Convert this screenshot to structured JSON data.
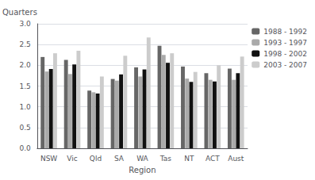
{
  "chart_data": {
    "type": "bar",
    "xlabel": "Region",
    "ylabel": "Quarters",
    "categories": [
      "NSW",
      "Vic",
      "Qld",
      "SA",
      "WA",
      "Tas",
      "NT",
      "ACT",
      "Aust"
    ],
    "series": [
      {
        "name": "1988 - 1992",
        "color": "#666666",
        "values": [
          2.2,
          2.13,
          1.39,
          1.67,
          1.95,
          2.47,
          1.97,
          1.81,
          1.92
        ]
      },
      {
        "name": "1993 - 1997",
        "color": "#aaaaaa",
        "values": [
          1.85,
          1.79,
          1.35,
          1.63,
          1.73,
          2.25,
          1.68,
          1.65,
          1.65
        ]
      },
      {
        "name": "1998 - 2002",
        "color": "#111111",
        "values": [
          1.91,
          2.02,
          1.32,
          1.78,
          1.9,
          2.06,
          1.6,
          1.61,
          1.81
        ]
      },
      {
        "name": "2003 - 2007",
        "color": "#cccccc",
        "values": [
          2.29,
          2.35,
          1.73,
          2.23,
          2.67,
          2.29,
          1.84,
          2.0,
          2.21
        ]
      }
    ],
    "ylim": [
      0,
      3.0
    ],
    "yticks": [
      {
        "value": 0,
        "label": "0.0"
      },
      0.5,
      {
        "value": 1,
        "label": "1.0"
      },
      1.5,
      {
        "value": 2,
        "label": "2.0"
      },
      2.5,
      {
        "value": 3,
        "label": "3.0"
      }
    ],
    "grid": true,
    "legend": "upper right"
  }
}
